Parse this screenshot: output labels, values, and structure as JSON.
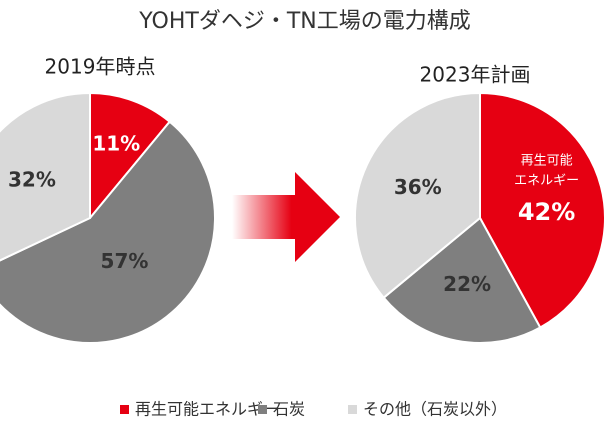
{
  "title": "YOHTダヘジ・TN工場の電力構成",
  "chart_data": [
    {
      "type": "pie",
      "title": "2019年時点",
      "categories": [
        "再生可能エネルギー",
        "石炭",
        "その他（石炭以外）"
      ],
      "values": [
        11,
        57,
        32
      ],
      "value_labels": [
        "11%",
        "57%",
        "32%"
      ],
      "colors": [
        "#e60012",
        "#7f7f7f",
        "#d9d9d9"
      ]
    },
    {
      "type": "pie",
      "title": "2023年計画",
      "categories": [
        "再生可能エネルギー",
        "石炭",
        "その他（石炭以外）"
      ],
      "values": [
        42,
        22,
        36
      ],
      "value_labels": [
        "42%",
        "22%",
        "36%"
      ],
      "colors": [
        "#e60012",
        "#7f7f7f",
        "#d9d9d9"
      ],
      "annotation": [
        "再生可能",
        "エネルギー"
      ]
    }
  ]
}
